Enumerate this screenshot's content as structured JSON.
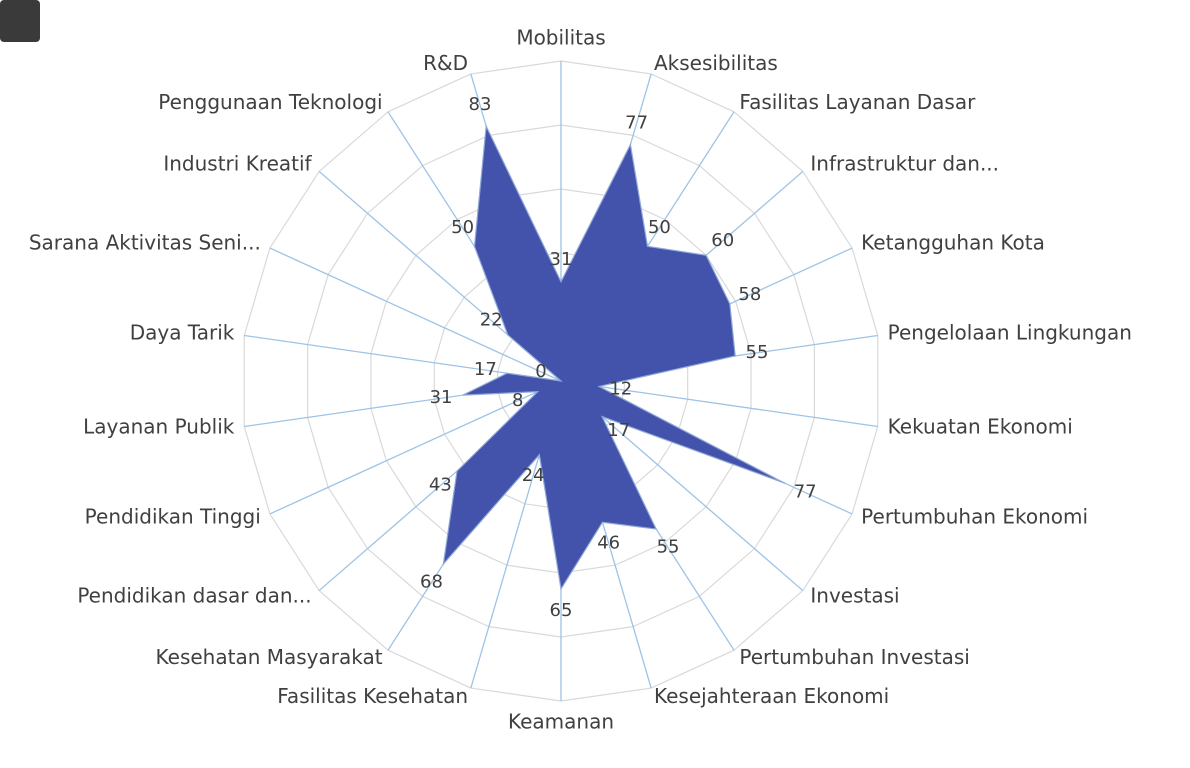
{
  "chart_data": {
    "type": "radar",
    "categories": [
      "Mobilitas",
      "Aksesibilitas",
      "Fasilitas Layanan Dasar",
      "Infrastruktur dan...",
      "Ketangguhan Kota",
      "Pengelolaan Lingkungan",
      "Kekuatan Ekonomi",
      "Pertumbuhan Ekonomi",
      "Investasi",
      "Pertumbuhan Investasi",
      "Kesejahteraan Ekonomi",
      "Keamanan",
      "Fasilitas Kesehatan",
      "Kesehatan Masyarakat",
      "Pendidikan dasar dan...",
      "Pendidikan Tinggi",
      "Layanan Publik",
      "Daya Tarik",
      "Sarana Aktivitas Seni...",
      "Industri Kreatif",
      "Penggunaan Teknologi",
      "R&D"
    ],
    "values": [
      31,
      77,
      50,
      60,
      58,
      55,
      12,
      77,
      17,
      55,
      46,
      65,
      24,
      68,
      43,
      8,
      31,
      17,
      0,
      22,
      50,
      83
    ],
    "color": "#4352ab",
    "ylim": [
      0,
      100
    ],
    "yticks": [
      0,
      20,
      40,
      60,
      80,
      100
    ]
  }
}
